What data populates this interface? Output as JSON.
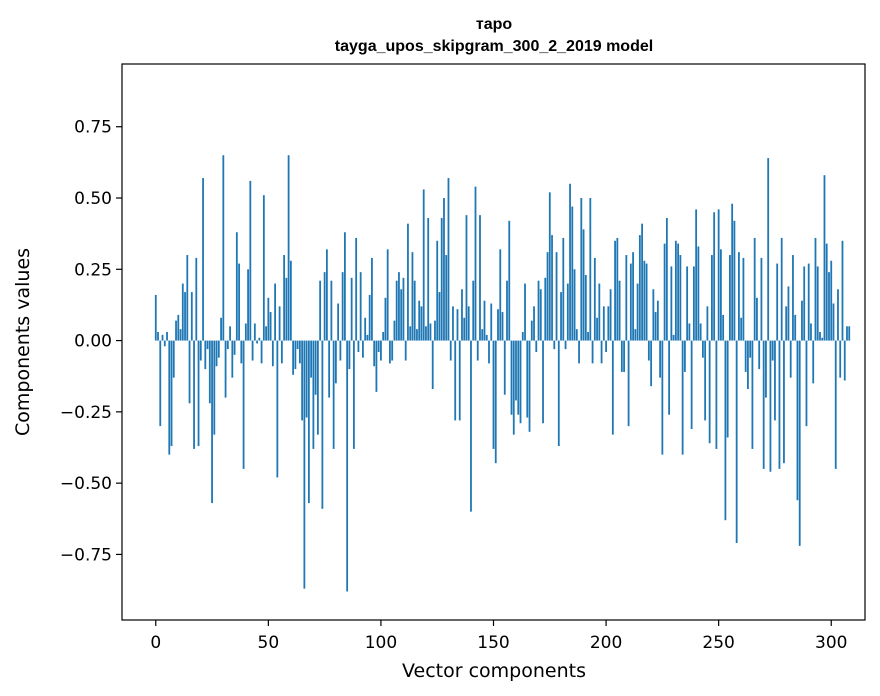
{
  "chart_data": {
    "type": "bar",
    "title": "тapo",
    "subtitle": "tayga_upos_skipgram_300_2_2019 model",
    "xlabel": "Vector components",
    "ylabel": "Components values",
    "xlim": [
      -15,
      315
    ],
    "ylim": [
      -0.98,
      0.97
    ],
    "xticks": [
      0,
      50,
      100,
      150,
      200,
      250,
      300
    ],
    "xtick_labels": [
      "0",
      "50",
      "100",
      "150",
      "200",
      "250",
      "300"
    ],
    "yticks": [
      -0.75,
      -0.5,
      -0.25,
      0.0,
      0.25,
      0.5,
      0.75
    ],
    "ytick_labels": [
      "−0.75",
      "−0.50",
      "−0.25",
      "0.00",
      "0.25",
      "0.50",
      "0.75"
    ],
    "bar_color": "#1f77b4",
    "grid": false,
    "values": [
      0.16,
      0.03,
      -0.3,
      0.02,
      -0.02,
      0.03,
      -0.4,
      -0.37,
      -0.13,
      0.07,
      0.09,
      0.04,
      0.2,
      0.17,
      0.3,
      -0.22,
      0.17,
      -0.38,
      0.29,
      -0.37,
      -0.07,
      0.57,
      -0.1,
      -0.03,
      -0.22,
      -0.57,
      -0.33,
      -0.09,
      -0.06,
      0.08,
      0.65,
      -0.2,
      -0.03,
      0.05,
      -0.13,
      -0.05,
      0.38,
      0.27,
      -0.08,
      -0.45,
      0.06,
      0.25,
      0.56,
      -0.07,
      0.06,
      -0.01,
      0.01,
      -0.08,
      0.51,
      0.05,
      0.15,
      0.1,
      -0.09,
      0.2,
      -0.48,
      0.12,
      -0.08,
      0.3,
      0.22,
      0.65,
      0.28,
      -0.12,
      -0.1,
      -0.03,
      -0.08,
      -0.28,
      -0.87,
      -0.27,
      -0.57,
      -0.13,
      -0.38,
      -0.19,
      -0.33,
      0.21,
      -0.59,
      0.24,
      0.32,
      -0.2,
      0.21,
      -0.38,
      -0.15,
      0.13,
      -0.07,
      0.24,
      0.38,
      -0.88,
      -0.1,
      0.22,
      -0.38,
      0.36,
      -0.04,
      0.24,
      -0.06,
      0.08,
      0.02,
      0.16,
      0.29,
      -0.09,
      -0.18,
      -0.04,
      -0.07,
      0.03,
      0.15,
      0.32,
      -0.08,
      -0.07,
      0.07,
      0.21,
      0.24,
      0.18,
      0.22,
      -0.07,
      0.41,
      0.05,
      0.31,
      0.21,
      0.04,
      0.14,
      0.12,
      0.53,
      0.05,
      0.43,
      0.06,
      -0.17,
      0.07,
      0.35,
      0.17,
      0.43,
      0.5,
      0.3,
      0.57,
      -0.07,
      0.12,
      -0.28,
      0.11,
      -0.28,
      0.18,
      0.08,
      0.44,
      0.12,
      -0.6,
      0.21,
      0.54,
      -0.07,
      0.44,
      0.04,
      0.14,
      0.02,
      -0.08,
      0.13,
      -0.38,
      -0.43,
      0.11,
      0.32,
      0.1,
      -0.19,
      0.21,
      0.42,
      -0.26,
      -0.33,
      -0.21,
      -0.26,
      -0.29,
      0.03,
      0.2,
      -0.27,
      -0.32,
      0.07,
      0.12,
      -0.04,
      0.21,
      0.18,
      -0.29,
      0.22,
      0.31,
      0.52,
      0.37,
      -0.03,
      0.31,
      -0.37,
      0.17,
      0.36,
      -0.03,
      0.2,
      0.55,
      0.47,
      0.25,
      0.04,
      -0.08,
      0.5,
      0.39,
      0.23,
      0.03,
      0.5,
      -0.08,
      0.29,
      0.08,
      0.2,
      -0.08,
      0.12,
      -0.04,
      0.12,
      0.18,
      -0.33,
      0.35,
      0.36,
      0.21,
      -0.11,
      -0.11,
      0.3,
      -0.3,
      0.27,
      0.31,
      0.04,
      0.2,
      0.37,
      0.41,
      0.28,
      0.27,
      -0.07,
      -0.16,
      0.18,
      0.1,
      0.14,
      -0.13,
      -0.4,
      0.34,
      0.43,
      -0.26,
      0.26,
      0.02,
      0.35,
      0.34,
      0.3,
      -0.4,
      -0.11,
      0.26,
      0.06,
      -0.31,
      0.26,
      0.46,
      0.33,
      0.06,
      -0.06,
      -0.28,
      0.12,
      -0.36,
      0.3,
      0.45,
      -0.38,
      0.46,
      0.32,
      0.09,
      -0.63,
      -0.34,
      0.3,
      0.48,
      0.42,
      -0.71,
      0.31,
      0.08,
      0.29,
      -0.11,
      -0.17,
      -0.06,
      -0.38,
      0.36,
      0.15,
      -0.1,
      0.29,
      -0.45,
      -0.2,
      0.64,
      -0.46,
      -0.07,
      -0.28,
      0.27,
      -0.45,
      0.36,
      -0.43,
      0.12,
      0.19,
      -0.13,
      0.3,
      0.09,
      -0.56,
      -0.72,
      0.14,
      0.26,
      -0.3,
      0.27,
      0.06,
      -0.15,
      0.36,
      0.26,
      0.03,
      0.01,
      0.58,
      0.34,
      0.24,
      0.28,
      0.13,
      -0.45,
      0.18,
      -0.13,
      0.35,
      -0.14,
      0.05,
      0.05
    ]
  }
}
